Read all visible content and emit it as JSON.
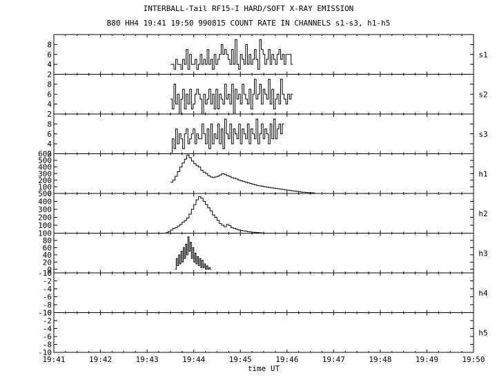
{
  "chart_data": {
    "type": "line",
    "title": "INTERBALL-Tail RF15-I HARD/SOFT X-RAY EMISSION",
    "subtitle": "B80 HH4 19:41 19:50 990815  COUNT RATE IN CHANNELS s1-s3, h1-h5",
    "xlabel": "time UT",
    "x_ticks": [
      "19:41",
      "19:42",
      "19:43",
      "19:44",
      "19:45",
      "19:46",
      "19:47",
      "19:48",
      "19:49",
      "19:50"
    ],
    "x_range": [
      "19:41",
      "19:50"
    ],
    "panels": [
      {
        "name": "s1",
        "ylim": [
          2,
          10
        ],
        "yticks": [
          "2",
          "4",
          "6",
          "8"
        ],
        "series": {
          "start": "19:43.5",
          "step_min": 0.0375,
          "values": [
            4,
            4,
            3,
            5,
            4,
            4,
            3,
            5,
            4,
            7,
            3,
            6,
            4,
            4,
            5,
            3,
            4,
            6,
            4,
            5,
            4,
            7,
            4,
            5,
            3,
            6,
            4,
            5,
            6,
            8,
            6,
            7,
            6,
            5,
            4,
            7,
            4,
            9,
            4,
            3,
            6,
            5,
            4,
            8,
            4,
            6,
            4,
            5,
            7,
            5,
            3,
            9,
            7,
            6,
            4,
            5,
            7,
            4,
            6,
            5,
            4,
            6,
            7,
            5,
            6,
            4,
            6,
            6,
            6,
            4
          ]
        }
      },
      {
        "name": "s2",
        "ylim": [
          2,
          10
        ],
        "yticks": [
          "2",
          "4",
          "6",
          "8"
        ],
        "series": {
          "start": "19:43.5",
          "step_min": 0.0375,
          "values": [
            5,
            3,
            8,
            4,
            6,
            2,
            5,
            7,
            3,
            6,
            4,
            7,
            3,
            4,
            6,
            7,
            6,
            5,
            2,
            6,
            4,
            5,
            7,
            4,
            6,
            3,
            7,
            3,
            6,
            5,
            4,
            8,
            5,
            6,
            4,
            8,
            2,
            7,
            5,
            6,
            4,
            8,
            6,
            5,
            4,
            7,
            3,
            6,
            9,
            5,
            6,
            8,
            4,
            7,
            6,
            5,
            9,
            4,
            7,
            3,
            5,
            6,
            4,
            9,
            6,
            5,
            4,
            6,
            5,
            6
          ]
        }
      },
      {
        "name": "s3",
        "ylim": [
          2,
          10
        ],
        "yticks": [
          "2",
          "4",
          "6",
          "8"
        ],
        "series": {
          "start": "19:43.5",
          "step_min": 0.0375,
          "values": [
            2,
            5,
            3,
            7,
            4,
            6,
            5,
            3,
            6,
            7,
            4,
            5,
            6,
            7,
            4,
            6,
            5,
            5,
            8,
            6,
            4,
            7,
            3,
            8,
            4,
            6,
            5,
            8,
            4,
            7,
            3,
            9,
            6,
            5,
            8,
            4,
            7,
            6,
            5,
            8,
            4,
            7,
            6,
            5,
            8,
            4,
            7,
            6,
            5,
            9,
            4,
            6,
            8,
            5,
            7,
            6,
            4,
            8,
            5,
            9,
            5,
            7,
            8,
            6,
            8
          ]
        }
      },
      {
        "name": "h1",
        "ylim": [
          0,
          600
        ],
        "yticks": [
          "0",
          "100",
          "200",
          "300",
          "400",
          "500",
          "600"
        ],
        "series": {
          "start": "19:43.5",
          "step_min": 0.05,
          "values": [
            170,
            200,
            260,
            330,
            400,
            460,
            520,
            580,
            540,
            490,
            450,
            420,
            400,
            350,
            320,
            300,
            270,
            250,
            240,
            250,
            260,
            280,
            300,
            290,
            270,
            260,
            240,
            230,
            220,
            200,
            190,
            180,
            170,
            160,
            150,
            140,
            130,
            120,
            115,
            110,
            100,
            95,
            90,
            85,
            80,
            75,
            70,
            65,
            60,
            55,
            50,
            45,
            40,
            35,
            30,
            25,
            20,
            18,
            15,
            12,
            10,
            8
          ]
        }
      },
      {
        "name": "h2",
        "ylim": [
          0,
          500
        ],
        "yticks": [
          "100",
          "200",
          "300",
          "400",
          "500"
        ],
        "series": {
          "start": "19:41",
          "step_min": 0.05,
          "values": [
            0,
            0,
            0,
            0,
            0,
            0,
            0,
            0,
            0,
            0,
            0,
            0,
            0,
            0,
            0,
            0,
            0,
            0,
            0,
            0,
            0,
            0,
            0,
            0,
            0,
            0,
            0,
            0,
            0,
            0,
            0,
            0,
            0,
            0,
            0,
            0,
            0,
            0,
            0,
            0,
            0,
            0,
            0,
            0,
            0,
            0,
            0,
            0,
            5,
            20,
            40,
            60,
            70,
            90,
            110,
            140,
            160,
            190,
            240,
            300,
            360,
            420,
            460,
            440,
            400,
            360,
            320,
            280,
            230,
            200,
            160,
            120,
            100,
            80,
            110,
            95,
            70,
            60,
            50,
            40,
            35,
            30,
            25,
            20,
            15,
            12,
            10,
            8,
            5,
            3
          ]
        }
      },
      {
        "name": "h3",
        "ylim": [
          -10,
          100
        ],
        "yticks": [
          "-10",
          "0",
          "20",
          "40",
          "60",
          "80",
          "100"
        ],
        "series": {
          "start": "19:43.6",
          "step_min": 0.025,
          "values": [
            0,
            30,
            10,
            40,
            15,
            50,
            20,
            60,
            30,
            70,
            40,
            90,
            50,
            75,
            30,
            60,
            20,
            45,
            15,
            35,
            10,
            30,
            5,
            25,
            5,
            15,
            0,
            10,
            0,
            5,
            0
          ]
        }
      },
      {
        "name": "h4",
        "ylim": [
          -10,
          0
        ],
        "yticks": [
          "-10",
          "-8",
          "-6",
          "-4",
          "-2",
          "0"
        ],
        "series": {
          "start": "",
          "step_min": 0,
          "values": []
        }
      },
      {
        "name": "h5",
        "ylim": [
          -10,
          0
        ],
        "yticks": [
          "-10",
          "-8",
          "-6",
          "-4",
          "-2",
          "0"
        ],
        "series": {
          "start": "",
          "step_min": 0,
          "values": []
        }
      }
    ]
  }
}
